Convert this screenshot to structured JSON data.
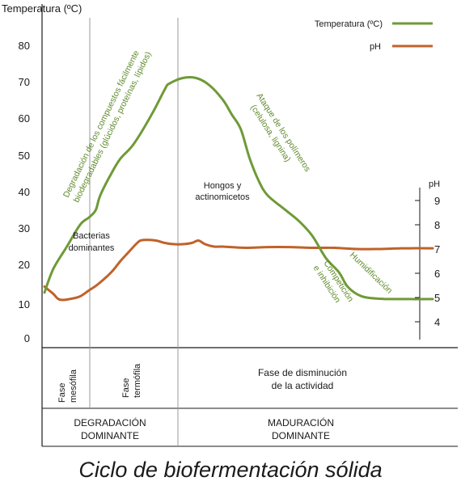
{
  "chart_data": {
    "type": "line",
    "title": "Ciclo de biofermentación sólida",
    "y_left": {
      "label": "Temperatura (ºC)",
      "ticks": [
        "0",
        "10",
        "20",
        "30",
        "40",
        "50",
        "60",
        "70",
        "80"
      ],
      "range": [
        0,
        87
      ]
    },
    "y_right": {
      "label": "pH",
      "ticks": [
        "4",
        "5",
        "6",
        "7",
        "8",
        "9"
      ]
    },
    "legend": {
      "placement": "top-right",
      "entries": [
        "Temperatura (ºC)",
        "pH"
      ]
    },
    "series": [
      {
        "name": "Temperatura (ºC)",
        "color": "#6f9a37",
        "points": [
          [
            0,
            13.5
          ],
          [
            2,
            20
          ],
          [
            5,
            26
          ],
          [
            8,
            32
          ],
          [
            10,
            34
          ],
          [
            11.5,
            36
          ],
          [
            12.5,
            40
          ],
          [
            15,
            46
          ],
          [
            17,
            50
          ],
          [
            20,
            54
          ],
          [
            24,
            62
          ],
          [
            27,
            69
          ],
          [
            28,
            70.5
          ],
          [
            31,
            72
          ],
          [
            34,
            72
          ],
          [
            37,
            70
          ],
          [
            40,
            66
          ],
          [
            42,
            62
          ],
          [
            44,
            58
          ],
          [
            46,
            50
          ],
          [
            48,
            44
          ],
          [
            50,
            40
          ],
          [
            54,
            36
          ],
          [
            57,
            33
          ],
          [
            60,
            29
          ],
          [
            63,
            23
          ],
          [
            66,
            19
          ],
          [
            68,
            15
          ],
          [
            71,
            12.5
          ],
          [
            75,
            11.8
          ],
          [
            80,
            11.7
          ],
          [
            87,
            11.7
          ]
        ]
      },
      {
        "name": "pH",
        "color": "#c0622a",
        "points": [
          [
            0,
            5.45
          ],
          [
            1,
            5.3
          ],
          [
            2,
            5.15
          ],
          [
            3,
            4.95
          ],
          [
            4,
            4.9
          ],
          [
            6,
            4.95
          ],
          [
            8,
            5.05
          ],
          [
            10,
            5.3
          ],
          [
            12,
            5.55
          ],
          [
            15,
            6.05
          ],
          [
            17,
            6.5
          ],
          [
            19,
            6.9
          ],
          [
            20.5,
            7.2
          ],
          [
            21.5,
            7.35
          ],
          [
            23,
            7.38
          ],
          [
            25,
            7.35
          ],
          [
            27,
            7.25
          ],
          [
            29,
            7.2
          ],
          [
            31,
            7.2
          ],
          [
            33,
            7.25
          ],
          [
            34.5,
            7.35
          ],
          [
            36,
            7.2
          ],
          [
            38,
            7.1
          ],
          [
            40,
            7.1
          ],
          [
            45,
            7.05
          ],
          [
            50,
            7.08
          ],
          [
            55,
            7.08
          ],
          [
            60,
            7.05
          ],
          [
            65,
            7.05
          ],
          [
            70,
            7.0
          ],
          [
            75,
            7.0
          ],
          [
            80,
            7.03
          ],
          [
            87,
            7.03
          ]
        ]
      }
    ],
    "annotations": {
      "temp_rise": [
        "Degradación de los compuestos fácilmente",
        "biodegradables (glúcidos, proteínas, lípidos)"
      ],
      "polymers": [
        "Ataque de los polímeros",
        "(celulosa, lignina)"
      ],
      "competition": [
        "Competición",
        "e inhibición"
      ],
      "humification": "Humidificación",
      "bacteria": [
        "Bacterias",
        "dominantes"
      ],
      "fungi": [
        "Hongos y",
        "actinomicetos"
      ]
    },
    "phases": {
      "mesophilic": [
        "Fase",
        "mesófila"
      ],
      "thermophilic": [
        "Fase",
        "termófila"
      ],
      "decline": [
        "Fase de disminución",
        "de la actividad"
      ]
    },
    "stages": {
      "degradation": [
        "DEGRADACIÓN",
        "DOMINANTE"
      ],
      "maturation": [
        "MADURACIÓN",
        "DOMINANTE"
      ]
    }
  }
}
